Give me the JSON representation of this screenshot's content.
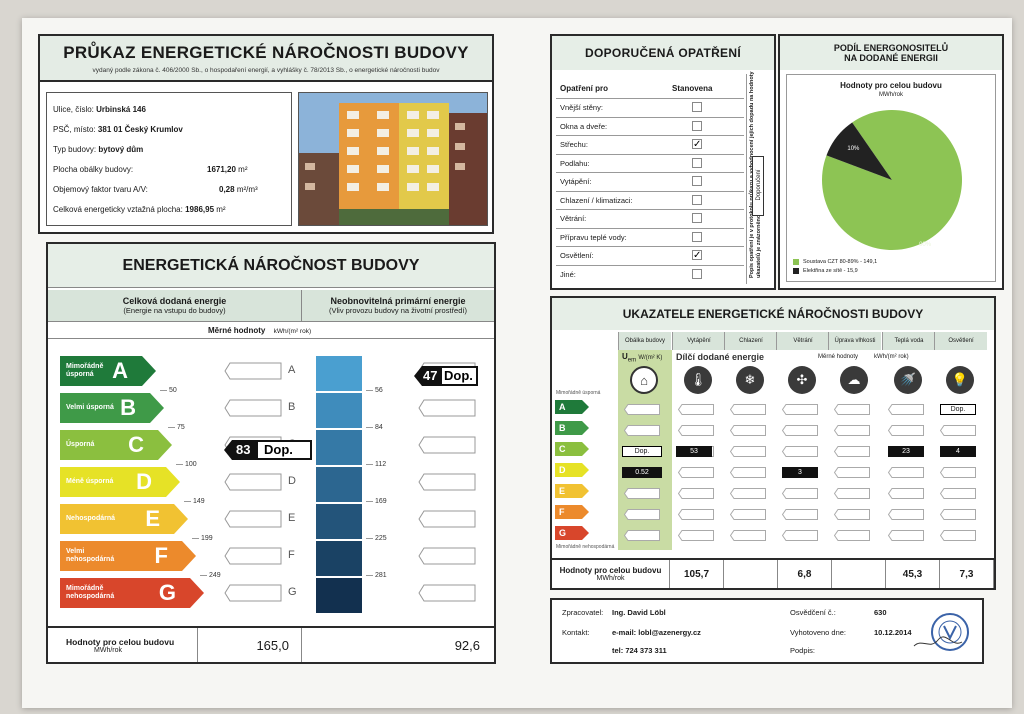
{
  "title": {
    "main": "PRŮKAZ ENERGETICKÉ NÁROČNOSTI BUDOVY",
    "sub": "vydaný podle zákona č. 406/2000 Sb., o hospodaření energií, a vyhlášky č. 78/2013 Sb., o energetické náročnosti budov"
  },
  "building": {
    "street_label": "Ulice, číslo:",
    "street": "Urbinská 146",
    "psc_label": "PSČ, místo:",
    "psc": "381 01 Český Krumlov",
    "type_label": "Typ budovy:",
    "type": "bytový dům",
    "area_label": "Plocha obálky budovy:",
    "area": "1671,20",
    "factor_label": "Objemový faktor tvaru A/V:",
    "factor": "0,28",
    "heated_label": "Celková energeticky vztažná plocha:",
    "heated": "1986,95",
    "unit_m2": "m²",
    "unit_m2m3": "m²/m³"
  },
  "energy": {
    "title": "ENERGETICKÁ NÁROČNOST BUDOVY",
    "col1_title": "Celková dodaná energie",
    "col1_sub": "(Energie na vstupu do budovy)",
    "col2_title": "Neobnovitelná primární energie",
    "col2_sub": "(Vliv provozu budovy na životní prostředí)",
    "unit_label": "Měrné hodnoty",
    "unit": "kWh/(m² rok)",
    "classes": [
      {
        "letter": "A",
        "label": "Mimořádně úsporná",
        "color": "#1f7a3a"
      },
      {
        "letter": "B",
        "label": "Velmi úsporná",
        "color": "#3f9a48"
      },
      {
        "letter": "C",
        "label": "Úsporná",
        "color": "#8bbf3f"
      },
      {
        "letter": "D",
        "label": "Méně úsporná",
        "color": "#e6e226"
      },
      {
        "letter": "E",
        "label": "Nehospodárná",
        "color": "#f1c232"
      },
      {
        "letter": "F",
        "label": "Velmi nehospodárná",
        "color": "#ec8a2c"
      },
      {
        "letter": "G",
        "label": "Mimořádně nehospodárná",
        "color": "#d8462b"
      }
    ],
    "thresholds_delivered": [
      "50",
      "75",
      "100",
      "149",
      "199",
      "249"
    ],
    "thresholds_primary": [
      "56",
      "84",
      "112",
      "169",
      "225",
      "281"
    ],
    "rating_delivered": {
      "value": "83",
      "tag": "Dop.",
      "class": "C"
    },
    "rating_primary": {
      "value": "47",
      "tag": "Dop.",
      "class": "A"
    },
    "totals_label": "Hodnoty pro celou budovu",
    "totals_unit": "MWh/rok",
    "total_delivered": "165,0",
    "total_primary": "92,6"
  },
  "measures": {
    "title": "DOPORUČENÁ OPATŘENÍ",
    "col_for": "Opatření pro",
    "col_set": "Stanovena",
    "items": [
      {
        "label": "Vnější stěny:",
        "checked": false
      },
      {
        "label": "Okna a dveře:",
        "checked": false
      },
      {
        "label": "Střechu:",
        "checked": true
      },
      {
        "label": "Podlahu:",
        "checked": false
      },
      {
        "label": "Vytápění:",
        "checked": false
      },
      {
        "label": "Chlazení / klimatizaci:",
        "checked": false
      },
      {
        "label": "Větrání:",
        "checked": false
      },
      {
        "label": "Přípravu teplé vody:",
        "checked": false
      },
      {
        "label": "Osvětlení:",
        "checked": true
      },
      {
        "label": "Jiné:",
        "checked": false
      }
    ],
    "side_note": "Popis opatření je v protokolu průkazu a vyhodnocení jejich dopadu na hodnoty ukazatelů je znázorněno šipkou",
    "side_tag": "Doporučení",
    "check_mark": "✓"
  },
  "share": {
    "title1": "PODÍL ENERGONOSITELŮ",
    "title2": "NA DODANÉ ENERGII",
    "subtitle": "Hodnoty pro celou budovu",
    "unit": "MWh/rok",
    "legend": [
      {
        "label": "Soustava CZT 80-89% - 149,1",
        "color": "#8dc454"
      },
      {
        "label": "Elektřina ze sítě - 15,9",
        "color": "#222222"
      }
    ]
  },
  "chart_data": {
    "type": "pie",
    "categories": [
      "Soustava CZT 80-89%",
      "Elektřina ze sítě"
    ],
    "values": [
      149.1,
      15.9
    ],
    "labels": [
      "90%",
      "10%"
    ]
  },
  "indicators": {
    "title": "UKAZATELE ENERGETICKÉ NÁROČNOSTI BUDOVY",
    "columns": [
      "Obálka budovy",
      "Vytápění",
      "Chlazení",
      "Větrání",
      "Úprava vlhkosti",
      "Teplá voda",
      "Osvětlení"
    ],
    "uem_label": "U",
    "uem_sub": "em",
    "uem_unit": "W/(m² K)",
    "partial_label": "Dílčí dodané energie",
    "partial_unit_label": "Měrné hodnoty",
    "partial_unit": "kWh/(m² rok)",
    "top_class_label": "Mimořádně úsporná",
    "bottom_class_label": "Mimořádně nehospodárná",
    "uem_tag": "Dop.",
    "uem_value": "0.52",
    "heating_value": "53",
    "ventilation_value": "3",
    "hotwater_value": "23",
    "lighting_value": "4",
    "lighting_tag": "Dop.",
    "totals_label": "Hodnoty pro celou budovu",
    "totals_unit": "MWh/rok",
    "totals": [
      "105,7",
      "",
      "6,8",
      "",
      "45,3",
      "7,3"
    ]
  },
  "footer": {
    "processor_label": "Zpracovatel:",
    "processor": "Ing. David Löbl",
    "contact_label": "Kontakt:",
    "email": "e-mail: lobl@azenergy.cz",
    "phone": "tel: 724 373 311",
    "cert_label": "Osvědčení č.:",
    "cert": "630",
    "date_label": "Vyhotoveno dne:",
    "date": "10.12.2014",
    "sign_label": "Podpis:"
  }
}
